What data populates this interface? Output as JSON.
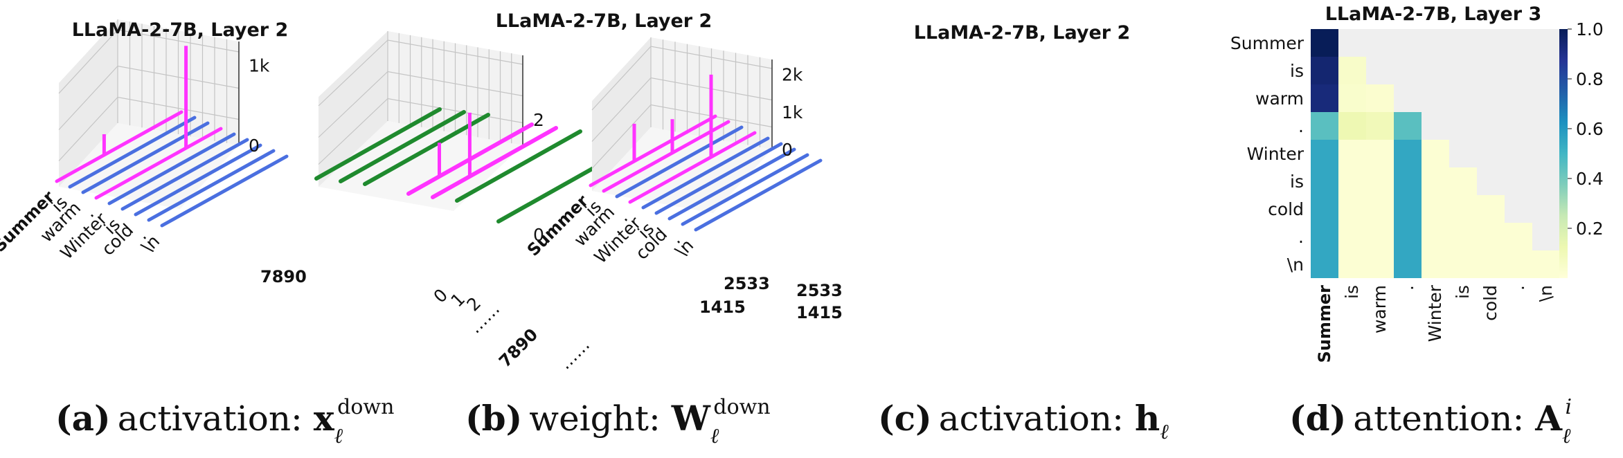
{
  "captions": [
    {
      "letter": "(a)",
      "text": "activation: ",
      "math_main": "x",
      "math_sup": "down",
      "math_sub": "ℓ"
    },
    {
      "letter": "(b)",
      "text": "weight: ",
      "math_main": "W",
      "math_sup": "down",
      "math_sub": "ℓ"
    },
    {
      "letter": "(c)",
      "text": "activation: ",
      "math_main": "h",
      "math_sup": "",
      "math_sub": "ℓ"
    },
    {
      "letter": "(d)",
      "text": "attention: ",
      "math_main": "A",
      "math_sup": "i",
      "math_sub": "ℓ"
    }
  ],
  "colors": {
    "massive": "#ff33ff",
    "normal": "#4a6fe0",
    "weight": "#1f8a2e",
    "pane": "#ebebeb",
    "grid": "#c4c4c4"
  },
  "chart_data": [
    {
      "type": "line",
      "title": "LLaMA-2-7B, Layer 2",
      "x_categories": [
        "Summer",
        "is",
        "warm",
        ".",
        "Winter",
        "is",
        "cold",
        ".",
        "\\n"
      ],
      "y_tick_labels": [
        "7890"
      ],
      "z_tick_labels": [
        "0",
        "1k"
      ],
      "zlim": [
        0,
        1300
      ],
      "series": [
        {
          "token": "Summer",
          "role": "massive",
          "peak": 260
        },
        {
          "token": "is",
          "role": "normal",
          "peak": 5
        },
        {
          "token": "warm",
          "role": "normal",
          "peak": 5
        },
        {
          "token": ".",
          "role": "massive",
          "peak": 1280
        },
        {
          "token": "Winter",
          "role": "normal",
          "peak": 5
        },
        {
          "token": "is",
          "role": "normal",
          "peak": 5
        },
        {
          "token": "cold",
          "role": "normal",
          "peak": 5
        },
        {
          "token": ".",
          "role": "normal",
          "peak": 5
        },
        {
          "token": "\\n",
          "role": "normal",
          "peak": 5
        }
      ]
    },
    {
      "type": "line",
      "title": "LLaMA-2-7B, Layer 2",
      "x_tick_labels": [
        "0",
        "1",
        "2",
        "……",
        "7890",
        "……"
      ],
      "y_tick_labels": [
        "2533",
        "1415"
      ],
      "z_tick_labels": [
        "0",
        "2"
      ],
      "zlim": [
        0,
        2.4
      ],
      "series": [
        {
          "row": 1,
          "role": "weight",
          "peak": 0.05
        },
        {
          "row": 2,
          "role": "weight",
          "peak": 0.05
        },
        {
          "row": 3,
          "role": "weight",
          "peak": 0.05
        },
        {
          "row": 4,
          "role": "massive",
          "peak": 0.9
        },
        {
          "row": 5,
          "role": "massive",
          "peak": 1.7
        },
        {
          "row": 6,
          "role": "weight",
          "peak": 0.05
        },
        {
          "row": 7,
          "role": "weight",
          "peak": 0.05
        }
      ]
    },
    {
      "type": "line",
      "title": "LLaMA-2-7B, Layer 2",
      "x_categories": [
        "Summer",
        "is",
        "warm",
        ".",
        "Winter",
        "is",
        "cold",
        ".",
        "\\n"
      ],
      "y_tick_labels": [
        "2533",
        "1415"
      ],
      "z_tick_labels": [
        "0",
        "1k",
        "2k"
      ],
      "zlim": [
        0,
        2400
      ],
      "series": [
        {
          "token": "Summer",
          "role": "massive",
          "peak": 1000
        },
        {
          "token": "is",
          "role": "massive",
          "peak": 900
        },
        {
          "token": "warm",
          "role": "normal",
          "peak": 5
        },
        {
          "token": ".",
          "role": "massive",
          "peak": 2200
        },
        {
          "token": "Winter",
          "role": "normal",
          "peak": 5
        },
        {
          "token": "is",
          "role": "normal",
          "peak": 5
        },
        {
          "token": "cold",
          "role": "normal",
          "peak": 5
        },
        {
          "token": ".",
          "role": "normal",
          "peak": 5
        },
        {
          "token": "\\n",
          "role": "normal",
          "peak": 5
        }
      ]
    },
    {
      "type": "heatmap",
      "title": "LLaMA-2-7B, Layer 3",
      "rows": [
        "Summer",
        "is",
        "warm",
        ".",
        "Winter",
        "is",
        "cold",
        ".",
        "\\n"
      ],
      "cols": [
        "Summer",
        "is",
        "warm",
        ".",
        "Winter",
        "is",
        "cold",
        ".",
        "\\n"
      ],
      "values": [
        [
          1.0,
          null,
          null,
          null,
          null,
          null,
          null,
          null,
          null
        ],
        [
          0.95,
          0.05,
          null,
          null,
          null,
          null,
          null,
          null,
          null
        ],
        [
          0.93,
          0.04,
          0.03,
          null,
          null,
          null,
          null,
          null,
          null
        ],
        [
          0.45,
          0.12,
          0.1,
          0.45,
          null,
          null,
          null,
          null,
          null
        ],
        [
          0.55,
          0.02,
          0.02,
          0.55,
          0.02,
          null,
          null,
          null,
          null
        ],
        [
          0.55,
          0.02,
          0.02,
          0.55,
          0.02,
          0.02,
          null,
          null,
          null
        ],
        [
          0.55,
          0.02,
          0.02,
          0.55,
          0.02,
          0.02,
          0.02,
          null,
          null
        ],
        [
          0.55,
          0.02,
          0.02,
          0.55,
          0.02,
          0.02,
          0.02,
          0.02,
          null
        ],
        [
          0.55,
          0.02,
          0.02,
          0.55,
          0.02,
          0.02,
          0.02,
          0.02,
          0.02
        ]
      ],
      "colorbar_ticks": [
        "1.0",
        "0.8",
        "0.6",
        "0.4",
        "0.2"
      ],
      "vmin": 0,
      "vmax": 1,
      "colormap": "YlGnBu"
    }
  ]
}
